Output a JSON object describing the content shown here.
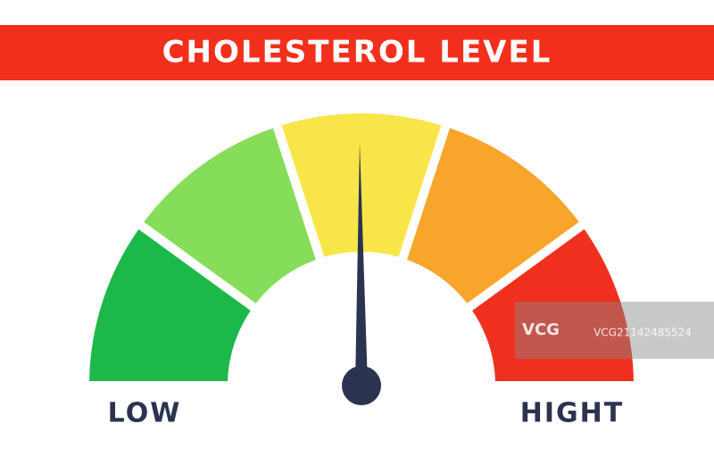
{
  "header": {
    "title": "CHOLESTEROL LEVEL"
  },
  "gauge": {
    "low_label": "LOW",
    "high_label": "HIGHT"
  },
  "watermark": {
    "logo": "VCG",
    "id": "VCG21142485524"
  }
}
